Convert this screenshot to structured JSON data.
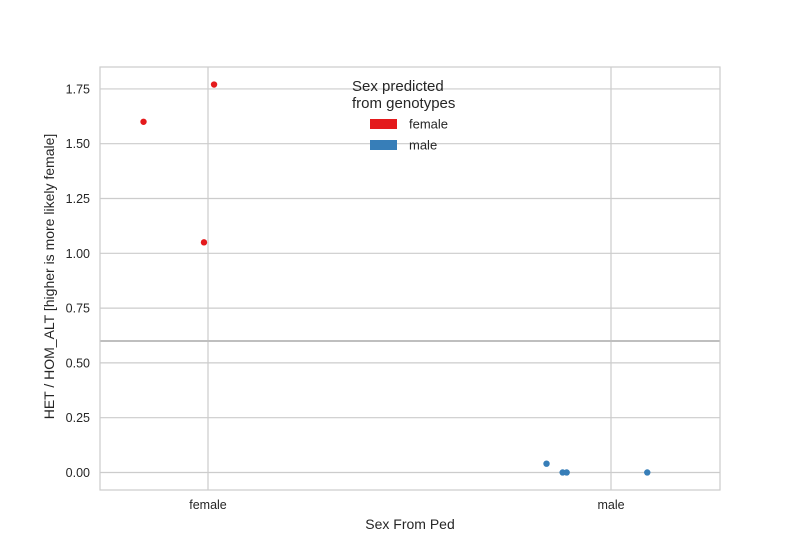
{
  "chart_data": {
    "type": "scatter",
    "xlabel": "Sex From Ped",
    "ylabel": "HET / HOM_ALT [higher is more likely female]",
    "categories": [
      "female",
      "male"
    ],
    "ylim": [
      -0.08,
      1.85
    ],
    "yticks": [
      0.0,
      0.25,
      0.5,
      0.75,
      1.0,
      1.25,
      1.5,
      1.75
    ],
    "ytick_labels": [
      "0.00",
      "0.25",
      "0.50",
      "0.75",
      "1.00",
      "1.25",
      "1.50",
      "1.75"
    ],
    "threshold_line": 0.6,
    "grid": true,
    "legend": {
      "title_lines": [
        "Sex predicted",
        "from genotypes"
      ],
      "placement": "top-center"
    },
    "series": [
      {
        "name": "female",
        "color": "#e41a1c",
        "points": [
          {
            "category": "female",
            "jitter": -0.16,
            "y": 1.6
          },
          {
            "category": "female",
            "jitter": 0.015,
            "y": 1.77
          },
          {
            "category": "female",
            "jitter": -0.01,
            "y": 1.05
          }
        ]
      },
      {
        "name": "male",
        "color": "#377eb8",
        "points": [
          {
            "category": "male",
            "jitter": -0.16,
            "y": 0.04
          },
          {
            "category": "male",
            "jitter": -0.12,
            "y": 0.0
          },
          {
            "category": "male",
            "jitter": -0.11,
            "y": 0.0
          },
          {
            "category": "male",
            "jitter": 0.09,
            "y": 0.0
          }
        ]
      }
    ]
  }
}
